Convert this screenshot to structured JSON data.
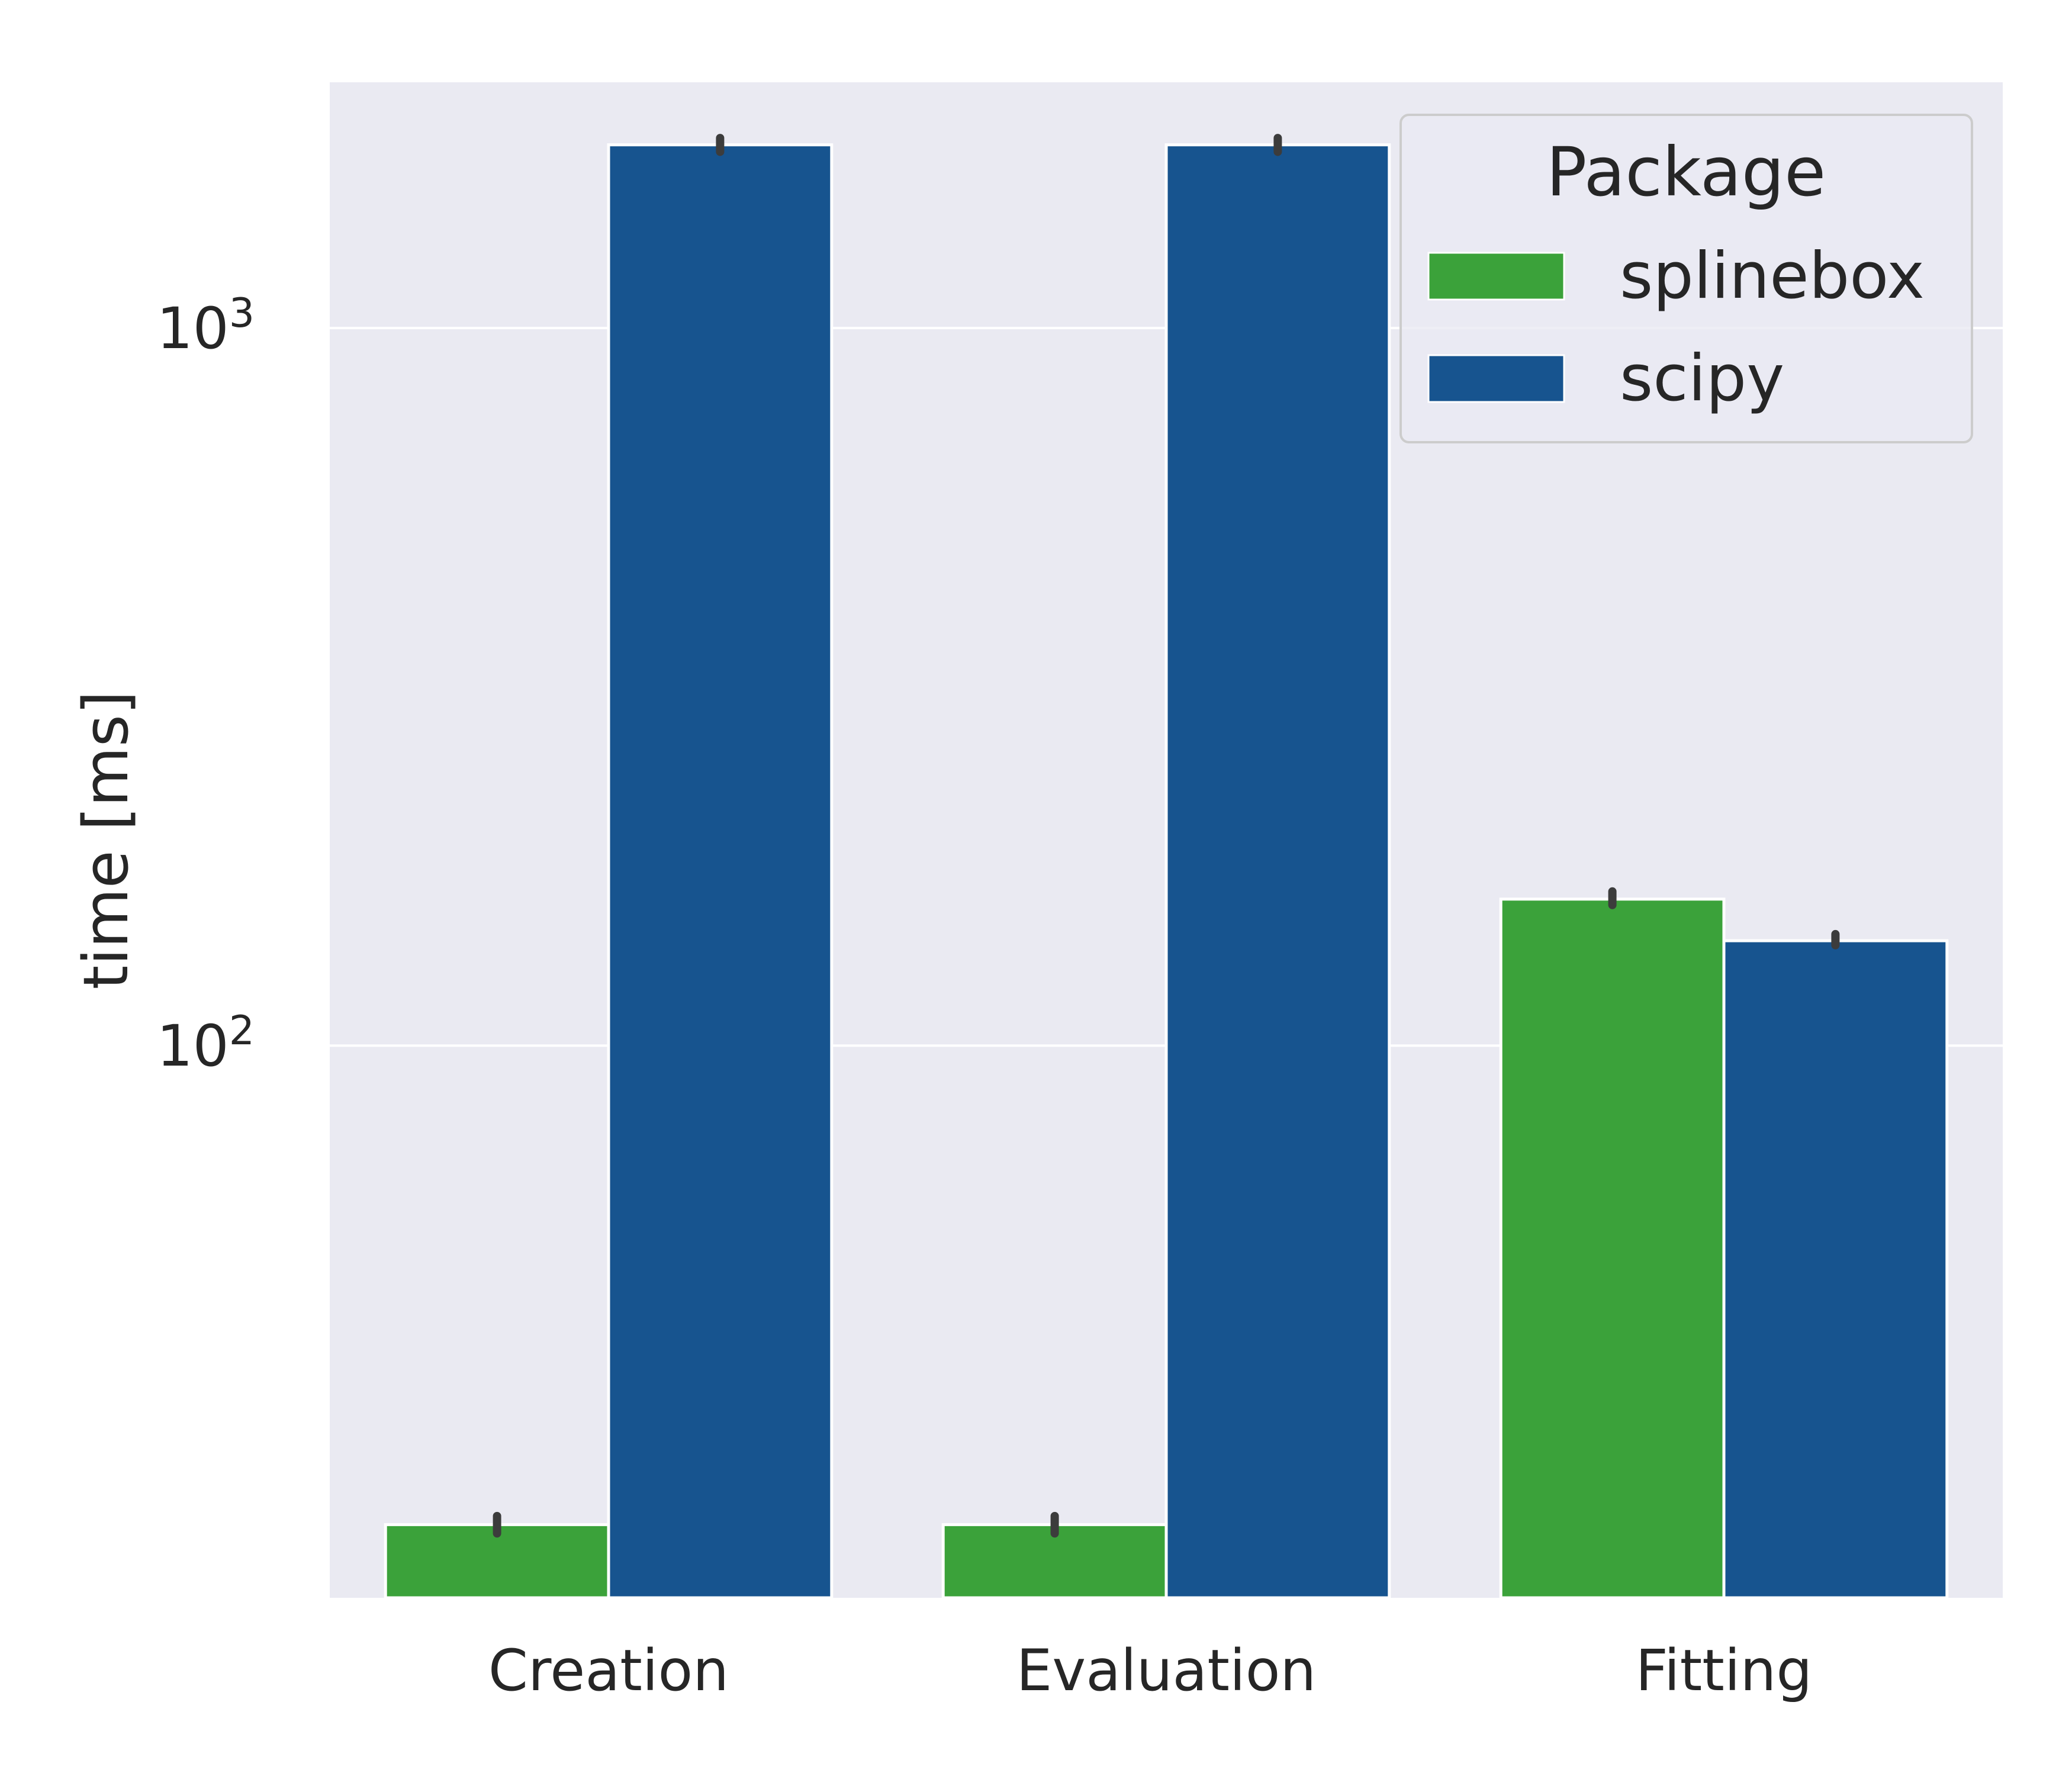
{
  "chart_data": {
    "type": "bar",
    "xlabel": "",
    "ylabel": "time [ms]",
    "y_scale": "log",
    "ylim": [
      17,
      2200
    ],
    "y_ticks": [
      {
        "value": 100,
        "base": "10",
        "exp": "2"
      },
      {
        "value": 1000,
        "base": "10",
        "exp": "3"
      }
    ],
    "categories": [
      "Creation",
      "Evaluation",
      "Fitting"
    ],
    "series": [
      {
        "name": "splinebox",
        "color": "#3ba23a",
        "values": [
          21.5,
          21.5,
          160
        ],
        "err_low": [
          20.9,
          20.9,
          157
        ],
        "err_high": [
          22.1,
          22.1,
          164
        ]
      },
      {
        "name": "scipy",
        "color": "#17548f",
        "values": [
          1800,
          1800,
          140
        ],
        "err_low": [
          1760,
          1760,
          138
        ],
        "err_high": [
          1840,
          1840,
          143
        ]
      }
    ],
    "legend": {
      "title": "Package",
      "position": "top-right"
    },
    "grid": true,
    "background": "#eaeaf2",
    "errorbar_color": "#3c3c3c"
  }
}
